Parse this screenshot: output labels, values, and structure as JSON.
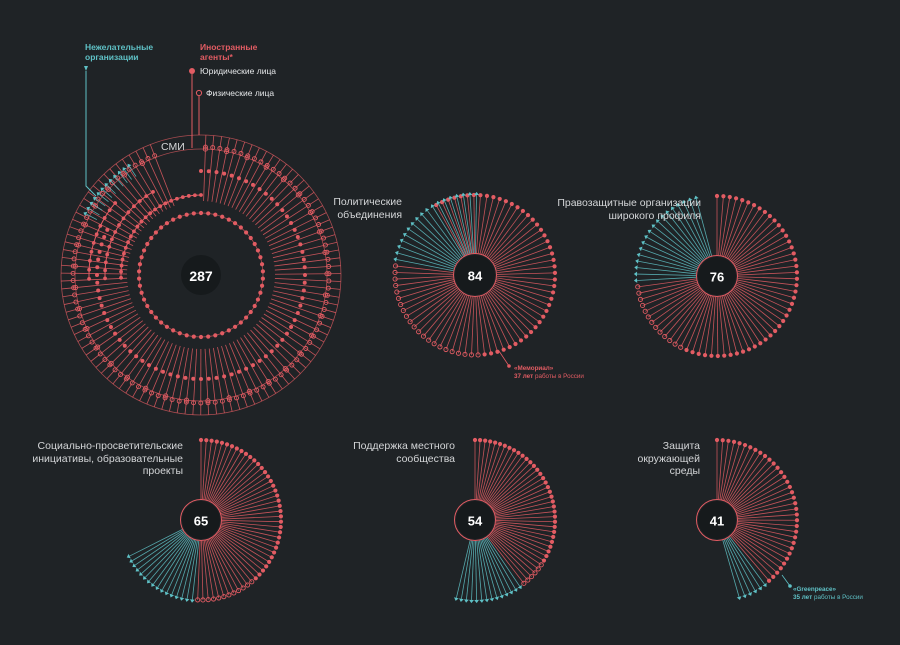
{
  "colors": {
    "background": "#1f2326",
    "foreign_agents": "#e25c63",
    "undesirable": "#5fc1c6",
    "hub": "#161a1c",
    "text": "#d4d6d8"
  },
  "legend": {
    "undesirable_title": "Нежелательные организации",
    "foreign_title": "Иностранные агенты*",
    "legal_entities": "Юридические лица",
    "individuals": "Физические лица"
  },
  "chart_data": [
    {
      "type": "radial-dot",
      "id": "smi",
      "label": "СМИ",
      "total": 287,
      "series": [
        {
          "name": "Юридические лица",
          "category": "Иностранные агенты*",
          "count": 110
        },
        {
          "name": "Физические лица",
          "category": "Иностранные агенты*",
          "count": 150
        },
        {
          "name": "Нежелательные организации",
          "count": 27
        }
      ]
    },
    {
      "type": "radial-dot",
      "id": "political",
      "label": "Политические объединения",
      "total": 84,
      "series": [
        {
          "name": "Юридические лица",
          "count": 44
        },
        {
          "name": "Физические лица",
          "count": 22
        },
        {
          "name": "Нежелательные организации",
          "count": 18
        }
      ],
      "annotation": {
        "name": "«Мемориал»",
        "years": "37 лет",
        "text": "работы в России"
      }
    },
    {
      "type": "radial-dot",
      "id": "human_rights",
      "label": "Правозащитные организации широкого профиля",
      "total": 76,
      "series": [
        {
          "name": "Юридические лица",
          "count": 45
        },
        {
          "name": "Физические лица",
          "count": 13
        },
        {
          "name": "Нежелательные организации",
          "count": 18
        }
      ]
    },
    {
      "type": "radial-dot",
      "id": "education",
      "label": "Социально-просветительские инициативы, образовательные проекты",
      "total": 65,
      "series": [
        {
          "name": "Юридические лица",
          "count": 37
        },
        {
          "name": "Физические лица",
          "count": 12
        },
        {
          "name": "Нежелательные организации",
          "count": 16
        }
      ]
    },
    {
      "type": "radial-dot",
      "id": "local",
      "label": "Поддержка местного сообщества",
      "total": 54,
      "series": [
        {
          "name": "Юридические лица",
          "count": 34
        },
        {
          "name": "Физические лица",
          "count": 6
        },
        {
          "name": "Нежелательные организации",
          "count": 14
        }
      ]
    },
    {
      "type": "radial-dot",
      "id": "environment",
      "label": "Защита окружающей среды",
      "total": 41,
      "series": [
        {
          "name": "Юридические лица",
          "count": 35
        },
        {
          "name": "Физические лица",
          "count": 0
        },
        {
          "name": "Нежелательные организации",
          "count": 6
        }
      ],
      "annotation": {
        "name": "«Greenpeace»",
        "years": "35 лет",
        "text": "работы в России"
      }
    }
  ]
}
